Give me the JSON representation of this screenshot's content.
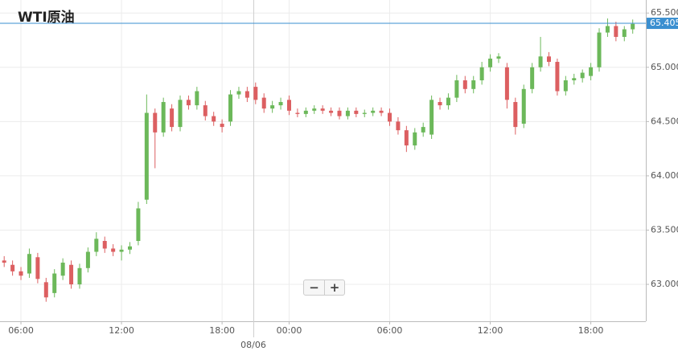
{
  "chart_data": {
    "type": "candlestick",
    "title": "WTI原油",
    "categories": [
      null,
      null,
      "06:00",
      null,
      null,
      null,
      null,
      null,
      null,
      null,
      null,
      null,
      null,
      null,
      "12:00",
      null,
      null,
      null,
      null,
      null,
      null,
      null,
      null,
      null,
      null,
      null,
      "18:00",
      null,
      null,
      null,
      null,
      null,
      null,
      null,
      "00:00",
      null,
      null,
      null,
      null,
      null,
      null,
      null,
      null,
      null,
      null,
      null,
      "06:00",
      null,
      null,
      null,
      null,
      null,
      null,
      null,
      null,
      null,
      null,
      null,
      "12:00",
      null,
      null,
      null,
      null,
      null,
      null,
      null,
      null,
      null,
      null,
      null,
      "18:00",
      null,
      null,
      null,
      null,
      null
    ],
    "date_label": "08/06",
    "open": [
      63.22,
      63.18,
      63.12,
      63.1,
      63.25,
      63.02,
      62.92,
      63.08,
      63.18,
      63.0,
      63.15,
      63.3,
      63.4,
      63.33,
      63.3,
      63.32,
      63.4,
      63.78,
      64.58,
      64.4,
      64.62,
      64.45,
      64.7,
      64.65,
      64.65,
      64.55,
      64.48,
      64.5,
      64.75,
      64.78,
      64.82,
      64.72,
      64.62,
      64.65,
      64.7,
      64.58,
      64.57,
      64.6,
      64.62,
      64.6,
      64.6,
      64.55,
      64.6,
      64.57,
      64.58,
      64.6,
      64.58,
      64.5,
      64.42,
      64.28,
      64.4,
      64.38,
      64.68,
      64.65,
      64.72,
      64.88,
      64.8,
      64.88,
      65.0,
      65.08,
      65.0,
      64.68,
      64.48,
      64.8,
      65.0,
      65.1,
      65.05,
      64.78,
      64.88,
      64.9,
      64.92,
      65.0,
      65.32,
      65.38,
      65.28,
      65.35
    ],
    "high": [
      63.26,
      63.22,
      63.16,
      63.33,
      63.29,
      63.06,
      63.14,
      63.24,
      63.22,
      63.19,
      63.34,
      63.48,
      63.44,
      63.37,
      63.36,
      63.39,
      63.76,
      64.75,
      64.62,
      64.72,
      64.66,
      64.74,
      64.74,
      64.82,
      64.69,
      64.59,
      64.52,
      64.79,
      64.82,
      64.82,
      64.86,
      64.76,
      64.69,
      64.72,
      64.74,
      64.62,
      64.63,
      64.65,
      64.65,
      64.63,
      64.63,
      64.63,
      64.63,
      64.61,
      64.63,
      64.63,
      64.62,
      64.54,
      64.46,
      64.44,
      64.49,
      64.74,
      64.72,
      64.76,
      64.93,
      64.92,
      64.92,
      65.05,
      65.12,
      65.13,
      65.04,
      64.72,
      64.84,
      65.04,
      65.28,
      65.14,
      65.08,
      64.92,
      64.94,
      64.98,
      65.04,
      65.36,
      65.45,
      65.42,
      65.38,
      65.44
    ],
    "low": [
      63.16,
      63.08,
      63.04,
      63.06,
      63.01,
      62.84,
      62.88,
      63.04,
      62.96,
      62.96,
      63.11,
      63.26,
      63.29,
      63.26,
      63.22,
      63.28,
      63.36,
      63.74,
      64.07,
      64.36,
      64.41,
      64.41,
      64.61,
      64.61,
      64.51,
      64.46,
      64.4,
      64.46,
      64.71,
      64.68,
      64.66,
      64.58,
      64.58,
      64.61,
      64.56,
      64.54,
      64.54,
      64.57,
      64.57,
      64.55,
      64.52,
      64.52,
      64.54,
      64.54,
      64.55,
      64.55,
      64.46,
      64.38,
      64.22,
      64.24,
      64.36,
      64.34,
      64.61,
      64.61,
      64.68,
      64.76,
      64.76,
      64.84,
      64.96,
      65.04,
      64.62,
      64.38,
      64.44,
      64.76,
      64.96,
      65.01,
      64.74,
      64.74,
      64.84,
      64.86,
      64.88,
      64.96,
      65.28,
      65.24,
      65.24,
      65.31
    ],
    "close": [
      63.2,
      63.12,
      63.08,
      63.28,
      63.05,
      62.88,
      63.1,
      63.2,
      63.0,
      63.15,
      63.3,
      63.42,
      63.33,
      63.3,
      63.32,
      63.35,
      63.7,
      64.58,
      64.4,
      64.68,
      64.45,
      64.7,
      64.65,
      64.78,
      64.55,
      64.5,
      64.45,
      64.75,
      64.78,
      64.72,
      64.7,
      64.62,
      64.65,
      64.68,
      64.6,
      64.57,
      64.6,
      64.62,
      64.6,
      64.58,
      64.55,
      64.6,
      64.57,
      64.58,
      64.6,
      64.58,
      64.5,
      64.42,
      64.28,
      64.4,
      64.45,
      64.7,
      64.65,
      64.72,
      64.88,
      64.8,
      64.88,
      65.0,
      65.08,
      65.1,
      64.7,
      64.45,
      64.8,
      65.0,
      65.1,
      65.05,
      64.78,
      64.88,
      64.9,
      64.95,
      65.0,
      65.32,
      65.38,
      65.28,
      65.35,
      65.4
    ],
    "up_color": "#6cb85a",
    "down_color": "#dc5f61",
    "last_price": 65.405,
    "last_price_color": "#3a8fd0",
    "ylim": [
      62.66,
      65.62
    ],
    "yticks": [
      {
        "value": 63,
        "label": "63.000"
      },
      {
        "value": 63.5,
        "label": "63.500"
      },
      {
        "value": 64,
        "label": "64.000"
      },
      {
        "value": 64.5,
        "label": "64.500"
      },
      {
        "value": 65,
        "label": "65.000"
      },
      {
        "value": 65.5,
        "label": "65.500"
      }
    ],
    "grid": true
  },
  "zoom_controls": {
    "minus": "−",
    "plus": "+"
  }
}
